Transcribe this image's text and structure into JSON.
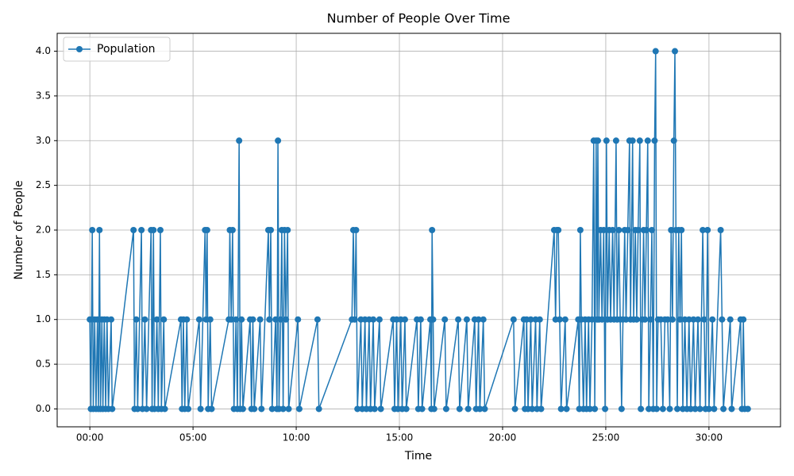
{
  "chart_data": {
    "type": "line",
    "title": "Number of People Over Time",
    "x_label": "Time",
    "y_label": "Number of People",
    "x": [
      0,
      3,
      7,
      10,
      14,
      18,
      22,
      25,
      28,
      31,
      35,
      38,
      42,
      46,
      50,
      54,
      62,
      65,
      127,
      130,
      135,
      139,
      150,
      153,
      160,
      165,
      178,
      181,
      185,
      188,
      195,
      199,
      205,
      208,
      215,
      218,
      265,
      268,
      272,
      276,
      282,
      286,
      318,
      322,
      335,
      338,
      341,
      344,
      350,
      354,
      404,
      407,
      411,
      415,
      419,
      425,
      429,
      434,
      437,
      441,
      445,
      466,
      470,
      474,
      478,
      495,
      499,
      519,
      522,
      526,
      530,
      540,
      544,
      547,
      550,
      555,
      558,
      562,
      566,
      570,
      575,
      578,
      605,
      609,
      662,
      666,
      762,
      766,
      770,
      774,
      778,
      788,
      792,
      800,
      804,
      812,
      816,
      824,
      828,
      842,
      846,
      882,
      886,
      892,
      896,
      904,
      908,
      916,
      920,
      951,
      955,
      962,
      966,
      990,
      993,
      995,
      998,
      1001,
      1032,
      1036,
      1071,
      1075,
      1096,
      1100,
      1119,
      1123,
      1130,
      1134,
      1144,
      1148,
      1232,
      1236,
      1262,
      1265,
      1270,
      1274,
      1282,
      1286,
      1296,
      1300,
      1308,
      1312,
      1350,
      1354,
      1358,
      1362,
      1366,
      1370,
      1382,
      1386,
      1420,
      1423,
      1426,
      1429,
      1435,
      1440,
      1444,
      1450,
      1454,
      1460,
      1465,
      1468,
      1472,
      1475,
      1477,
      1480,
      1485,
      1489,
      1494,
      1498,
      1502,
      1505,
      1510,
      1514,
      1520,
      1524,
      1530,
      1533,
      1538,
      1542,
      1546,
      1550,
      1555,
      1559,
      1564,
      1569,
      1572,
      1578,
      1581,
      1586,
      1590,
      1594,
      1599,
      1602,
      1606,
      1610,
      1614,
      1618,
      1622,
      1625,
      1630,
      1634,
      1638,
      1642,
      1645,
      1648,
      1652,
      1660,
      1666,
      1672,
      1680,
      1686,
      1690,
      1694,
      1698,
      1701,
      1704,
      1708,
      1712,
      1716,
      1720,
      1724,
      1730,
      1736,
      1742,
      1747,
      1755,
      1760,
      1768,
      1774,
      1782,
      1786,
      1790,
      1796,
      1800,
      1810,
      1815,
      1834,
      1838,
      1842,
      1862,
      1866,
      1892,
      1896,
      1900,
      1904,
      1913
    ],
    "series": [
      {
        "name": "Population",
        "color": "#1f77b4",
        "values": [
          1,
          0,
          2,
          0,
          1,
          0,
          1,
          0,
          2,
          0,
          1,
          0,
          1,
          0,
          1,
          0,
          1,
          0,
          2,
          0,
          1,
          0,
          2,
          0,
          1,
          0,
          2,
          0,
          2,
          0,
          1,
          0,
          2,
          0,
          1,
          0,
          1,
          0,
          1,
          0,
          1,
          0,
          1,
          0,
          2,
          1,
          2,
          0,
          1,
          0,
          1,
          2,
          1,
          2,
          0,
          1,
          0,
          3,
          0,
          1,
          0,
          1,
          0,
          1,
          0,
          1,
          0,
          2,
          1,
          2,
          0,
          1,
          0,
          3,
          0,
          1,
          2,
          0,
          2,
          1,
          2,
          0,
          1,
          0,
          1,
          0,
          1,
          2,
          1,
          2,
          0,
          1,
          0,
          1,
          0,
          1,
          0,
          1,
          0,
          1,
          0,
          1,
          0,
          1,
          0,
          1,
          0,
          1,
          0,
          1,
          0,
          1,
          0,
          1,
          0,
          2,
          1,
          0,
          1,
          0,
          1,
          0,
          1,
          0,
          1,
          0,
          1,
          0,
          1,
          0,
          1,
          0,
          1,
          0,
          1,
          0,
          1,
          0,
          1,
          0,
          1,
          0,
          2,
          1,
          2,
          2,
          1,
          0,
          1,
          0,
          1,
          0,
          2,
          1,
          0,
          1,
          0,
          1,
          0,
          1,
          3,
          0,
          3,
          1,
          3,
          1,
          2,
          1,
          2,
          0,
          3,
          1,
          2,
          1,
          2,
          1,
          3,
          1,
          2,
          1,
          0,
          1,
          2,
          1,
          2,
          3,
          1,
          3,
          1,
          2,
          1,
          2,
          3,
          0,
          1,
          2,
          1,
          2,
          3,
          0,
          1,
          2,
          0,
          3,
          4,
          0,
          1,
          1,
          0,
          1,
          1,
          0,
          2,
          1,
          3,
          4,
          2,
          0,
          2,
          1,
          2,
          0,
          1,
          0,
          1,
          0,
          1,
          0,
          1,
          0,
          2,
          1,
          0,
          2,
          0,
          1,
          0,
          2,
          1,
          0,
          1,
          0,
          1,
          0,
          1,
          0,
          0
        ]
      }
    ],
    "xlim": [
      -95,
      2008
    ],
    "xticks": [
      {
        "value": 0,
        "label": "00:00"
      },
      {
        "value": 300,
        "label": "05:00"
      },
      {
        "value": 600,
        "label": "10:00"
      },
      {
        "value": 900,
        "label": "15:00"
      },
      {
        "value": 1200,
        "label": "20:00"
      },
      {
        "value": 1500,
        "label": "25:00"
      },
      {
        "value": 1800,
        "label": "30:00"
      }
    ],
    "ylim": [
      -0.2,
      4.2
    ],
    "yticks": [
      {
        "value": 0,
        "label": "0.0"
      },
      0.5,
      {
        "value": 1,
        "label": "1.0"
      },
      1.5,
      {
        "value": 2,
        "label": "2.0"
      },
      2.5,
      {
        "value": 3,
        "label": "3.0"
      },
      3.5,
      {
        "value": 4,
        "label": "4.0"
      }
    ],
    "grid": true,
    "legend": "upper left",
    "marker": "circle"
  }
}
